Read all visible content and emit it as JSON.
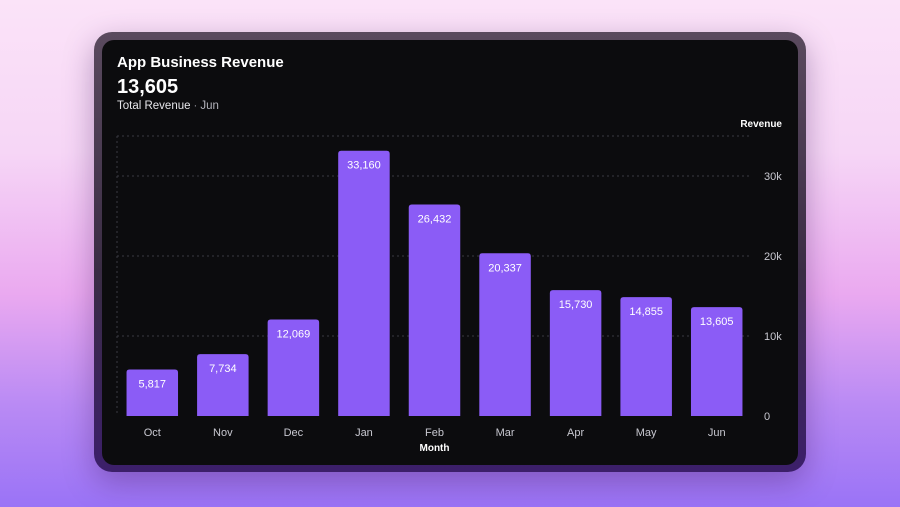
{
  "card": {
    "title": "App Business Revenue",
    "total_value": "13,605",
    "subtitle_label": "Total Revenue",
    "subtitle_separator": "·",
    "subtitle_period": "Jun"
  },
  "colors": {
    "bar": "#8b5cf6",
    "card_background": "#0c0c0e",
    "gridline": "#3a3a42",
    "label_text": "#c8c8d0"
  },
  "chart_data": {
    "type": "bar",
    "title": "App Business Revenue",
    "xlabel": "Month",
    "ylabel": "Revenue",
    "categories": [
      "Oct",
      "Nov",
      "Dec",
      "Jan",
      "Feb",
      "Mar",
      "Apr",
      "May",
      "Jun"
    ],
    "values": [
      5817,
      7734,
      12069,
      33160,
      26432,
      20337,
      15730,
      14855,
      13605
    ],
    "value_labels": [
      "5,817",
      "7,734",
      "12,069",
      "33,160",
      "26,432",
      "20,337",
      "15,730",
      "14,855",
      "13,605"
    ],
    "ylim": [
      0,
      35000
    ],
    "yticks": [
      0,
      10000,
      20000,
      30000
    ],
    "ytick_labels": [
      "0",
      "10k",
      "20k",
      "30k"
    ],
    "y_axis_side": "right",
    "grid": true,
    "legend": "none"
  }
}
